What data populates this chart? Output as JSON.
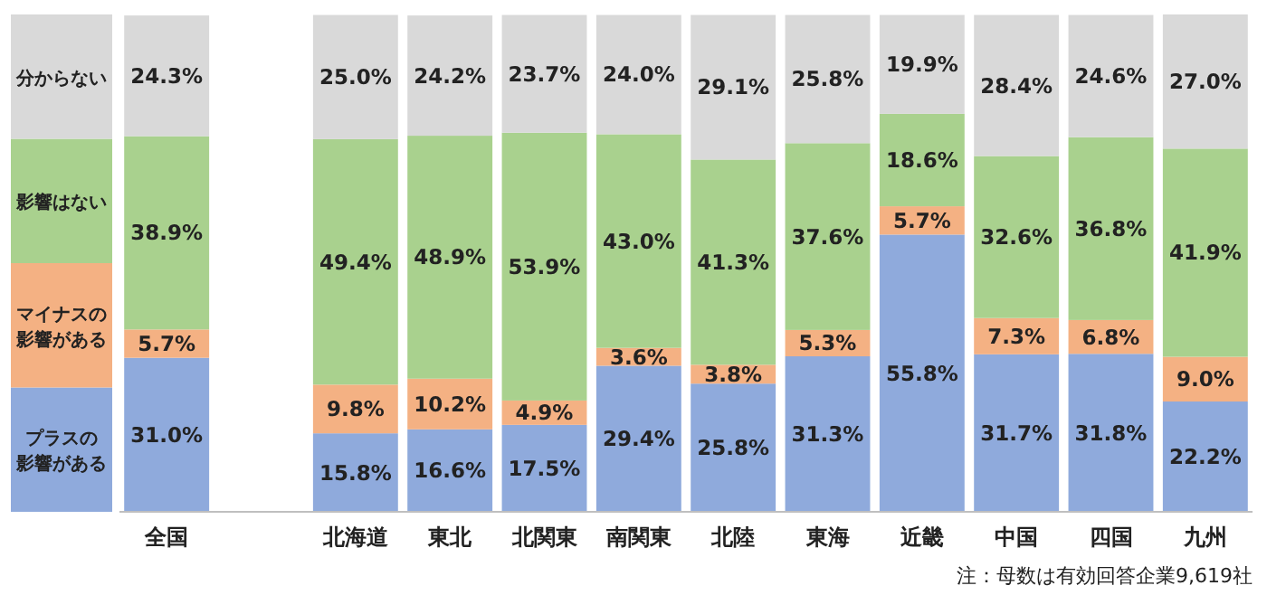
{
  "chart_data": {
    "type": "bar",
    "stacked": true,
    "legend": "left",
    "categories": [
      "全国",
      null,
      "北海道",
      "東北",
      "北関東",
      "南関東",
      "北陸",
      "東海",
      "近畿",
      "中国",
      "四国",
      "九州"
    ],
    "series": [
      {
        "name": "プラスの影響がある",
        "color": "#8faadc",
        "values": [
          31.0,
          null,
          15.8,
          16.6,
          17.5,
          29.4,
          25.8,
          31.3,
          55.8,
          31.7,
          31.8,
          22.2
        ],
        "value_labels": [
          "31.0%",
          null,
          "15.8%",
          "16.6%",
          "17.5%",
          "29.4%",
          "25.8%",
          "31.3%",
          "55.8%",
          "31.7%",
          "31.8%",
          "22.2%"
        ]
      },
      {
        "name": "マイナスの影響がある",
        "color": "#f4b183",
        "values": [
          5.7,
          null,
          9.8,
          10.2,
          4.9,
          3.6,
          3.8,
          5.3,
          5.7,
          7.3,
          6.8,
          9.0
        ],
        "value_labels": [
          "5.7%",
          null,
          "9.8%",
          "10.2%",
          "4.9%",
          "3.6%",
          "3.8%",
          "5.3%",
          "5.7%",
          "7.3%",
          "6.8%",
          "9.0%"
        ]
      },
      {
        "name": "影響はない",
        "color": "#a9d18e",
        "values": [
          38.9,
          null,
          49.4,
          48.9,
          53.9,
          43.0,
          41.3,
          37.6,
          18.6,
          32.6,
          36.8,
          41.9
        ],
        "value_labels": [
          "38.9%",
          null,
          "49.4%",
          "48.9%",
          "53.9%",
          "43.0%",
          "41.3%",
          "37.6%",
          "18.6%",
          "32.6%",
          "36.8%",
          "41.9%"
        ]
      },
      {
        "name": "分からない",
        "color": "#d9d9d9",
        "values": [
          24.3,
          null,
          25.0,
          24.2,
          23.7,
          24.0,
          29.1,
          25.8,
          19.9,
          28.4,
          24.6,
          27.0
        ],
        "value_labels": [
          "24.3%",
          null,
          "25.0%",
          "24.2%",
          "23.7%",
          "24.0%",
          "29.1%",
          "25.8%",
          "19.9%",
          "28.4%",
          "24.6%",
          "27.0%"
        ]
      }
    ],
    "annotations": [
      "注：母数は有効回答企業9,619社"
    ]
  }
}
